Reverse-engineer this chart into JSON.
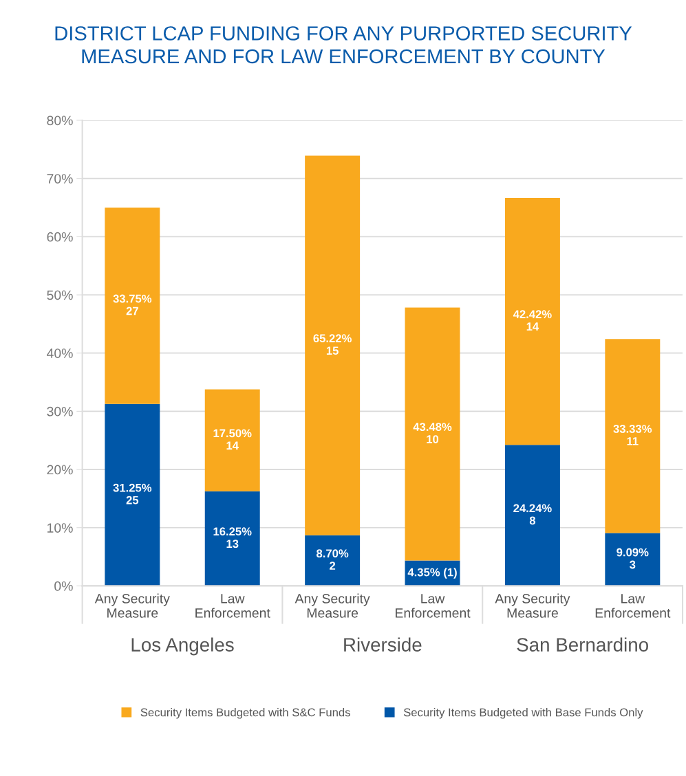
{
  "chart_data": {
    "type": "bar",
    "stacked": true,
    "title": "DISTRICT LCAP FUNDING FOR ANY PURPORTED SECURITY\nMEASURE AND FOR LAW ENFORCEMENT BY COUNTY",
    "categories": [
      "Any Security\nMeasure",
      "Law\nEnforcement",
      "Any Security\nMeasure",
      "Law\nEnforcement",
      "Any Security\nMeasure",
      "Law\nEnforcement"
    ],
    "series": [
      {
        "name": "Security Items Budgeted with Base Funds Only",
        "color": "#0057a8",
        "values": [
          31.25,
          16.25,
          8.7,
          4.35,
          24.24,
          9.09
        ],
        "value_labels": [
          "31.25%\n25",
          "16.25%\n13",
          "8.70%\n2",
          "4.35% (1)",
          "24.24%\n8",
          "9.09%\n3"
        ]
      },
      {
        "name": "Security Items Budgeted with S&C Funds",
        "color": "#f9a91e",
        "values": [
          33.75,
          17.5,
          65.22,
          43.48,
          42.42,
          33.33
        ],
        "value_labels": [
          "33.75%\n27",
          "17.50%\n14",
          "65.22%\n15",
          "43.48%\n10",
          "42.42%\n14",
          "33.33%\n11"
        ]
      }
    ],
    "annotations": [
      "Los Angeles",
      "Riverside",
      "San Bernardino"
    ],
    "ylim": [
      0,
      80
    ],
    "yticks": [
      {
        "value": 0,
        "label": "0%"
      },
      {
        "value": 10,
        "label": "10%"
      },
      {
        "value": 20,
        "label": "20%"
      },
      {
        "value": 30,
        "label": "30%"
      },
      {
        "value": 40,
        "label": "40%"
      },
      {
        "value": 50,
        "label": "50%"
      },
      {
        "value": 60,
        "label": "60%"
      },
      {
        "value": 70,
        "label": "70%"
      },
      {
        "value": 80,
        "label": "80%"
      }
    ],
    "grid": "y",
    "legend": "bottom"
  }
}
